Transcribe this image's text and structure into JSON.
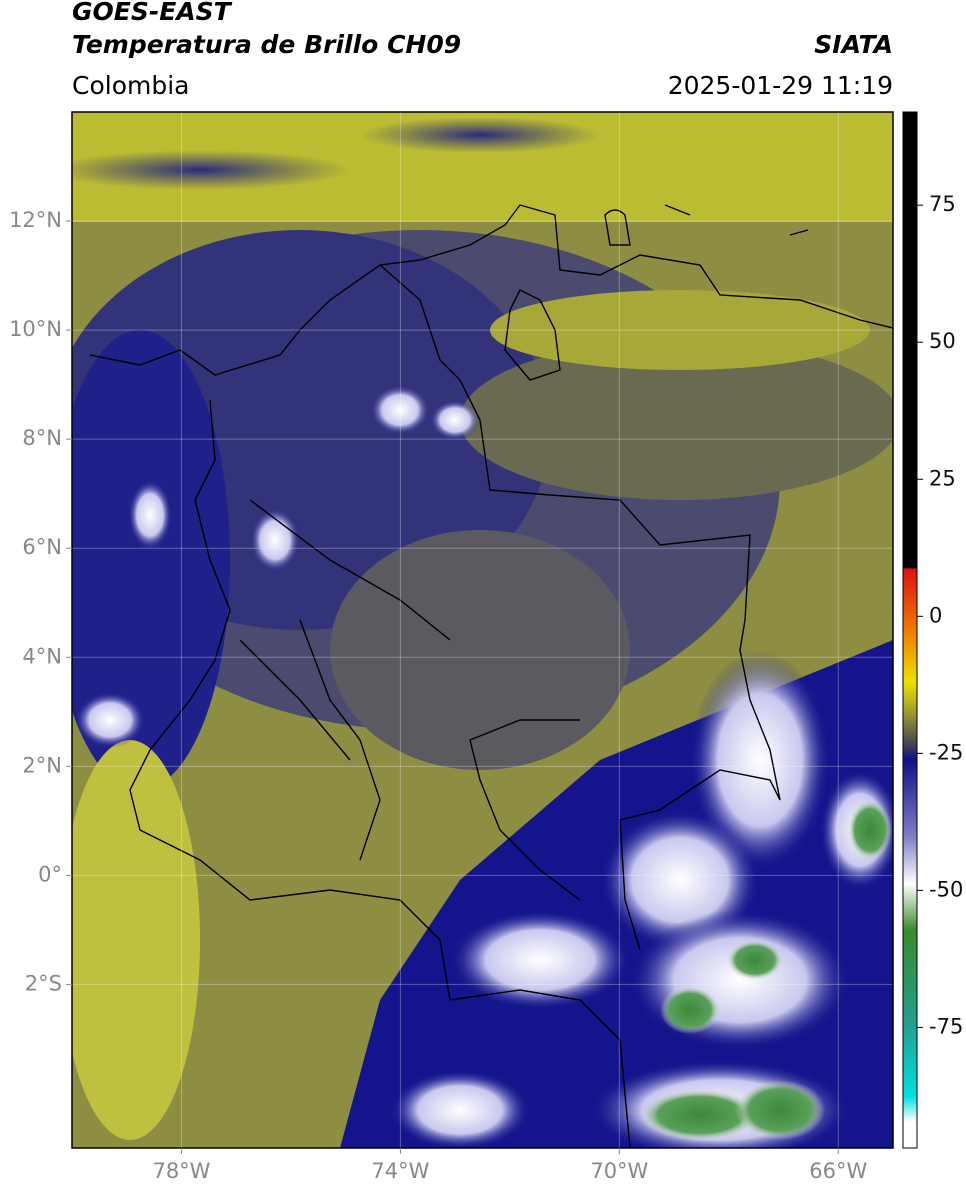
{
  "header": {
    "source": "GOES-EAST",
    "product": "Temperatura de Brillo CH09",
    "agency": "SIATA",
    "region": "Colombia",
    "timestamp": "2025-01-29 11:19"
  },
  "map": {
    "lonlim": [
      -80,
      -65
    ],
    "latlim": [
      -5,
      14
    ],
    "lonticks": [
      {
        "value": -78,
        "label": "78°W"
      },
      {
        "value": -74,
        "label": "74°W"
      },
      {
        "value": -70,
        "label": "70°W"
      },
      {
        "value": -66,
        "label": "66°W"
      }
    ],
    "latticks": [
      {
        "value": 12,
        "label": "12°N"
      },
      {
        "value": 10,
        "label": "10°N"
      },
      {
        "value": 8,
        "label": "8°N"
      },
      {
        "value": 6,
        "label": "6°N"
      },
      {
        "value": 4,
        "label": "4°N"
      },
      {
        "value": 2,
        "label": "2°N"
      },
      {
        "value": 0,
        "label": "0°"
      },
      {
        "value": -2,
        "label": "2°S"
      }
    ]
  },
  "colorbar": {
    "range": [
      -97,
      92
    ],
    "ticks": [
      75,
      50,
      25,
      0,
      -25,
      -50,
      -75
    ]
  }
}
